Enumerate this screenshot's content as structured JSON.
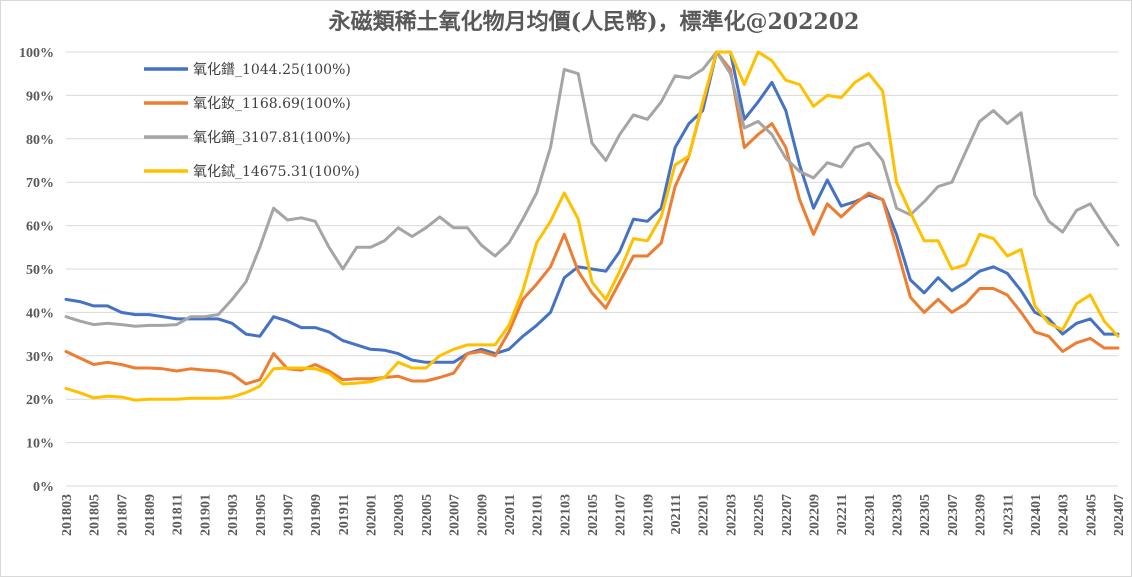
{
  "chart_data": {
    "type": "line",
    "title": "永磁類稀土氧化物月均價(人民幣)，標準化@202202",
    "xlabel": "",
    "ylabel": "",
    "ylim": [
      0,
      100
    ],
    "y_ticks": [
      "0%",
      "10%",
      "20%",
      "30%",
      "40%",
      "50%",
      "60%",
      "70%",
      "80%",
      "90%",
      "100%"
    ],
    "grid": "horizontal",
    "legend_position": "top-left",
    "x": [
      "201803",
      "201804",
      "201805",
      "201806",
      "201807",
      "201808",
      "201809",
      "201810",
      "201811",
      "201812",
      "201901",
      "201902",
      "201903",
      "201904",
      "201905",
      "201906",
      "201907",
      "201908",
      "201909",
      "201910",
      "201911",
      "201912",
      "202001",
      "202002",
      "202003",
      "202004",
      "202005",
      "202006",
      "202007",
      "202008",
      "202009",
      "202010",
      "202011",
      "202012",
      "202101",
      "202102",
      "202103",
      "202104",
      "202105",
      "202106",
      "202107",
      "202108",
      "202109",
      "202110",
      "202111",
      "202112",
      "202201",
      "202202",
      "202203",
      "202204",
      "202205",
      "202206",
      "202207",
      "202208",
      "202209",
      "202210",
      "202211",
      "202212",
      "202301",
      "202302",
      "202303",
      "202304",
      "202305",
      "202306",
      "202307",
      "202308",
      "202309",
      "202310",
      "202311",
      "202312",
      "202401",
      "202402",
      "202403",
      "202404",
      "202405",
      "202406",
      "202407"
    ],
    "x_tick_labels": [
      "201803",
      "201805",
      "201807",
      "201809",
      "201811",
      "201901",
      "201903",
      "201905",
      "201907",
      "201909",
      "201911",
      "202001",
      "202003",
      "202005",
      "202007",
      "202009",
      "202011",
      "202101",
      "202103",
      "202105",
      "202107",
      "202109",
      "202111",
      "202201",
      "202203",
      "202205",
      "202207",
      "202209",
      "202211",
      "202301",
      "202303",
      "202305",
      "202307",
      "202309",
      "202311",
      "202401",
      "202403",
      "202405",
      "202407"
    ],
    "series": [
      {
        "name": "氧化鐠_1044.25(100%)",
        "color": "#4472C4",
        "values": [
          43,
          42.5,
          41.5,
          41.5,
          40,
          39.5,
          39.5,
          39,
          38.5,
          38.5,
          38.5,
          38.5,
          37.5,
          35,
          34.5,
          39,
          38,
          36.5,
          36.5,
          35.5,
          33.5,
          32.5,
          31.5,
          31.3,
          30.5,
          29,
          28.5,
          28.5,
          28.5,
          30.5,
          31.5,
          30.5,
          31.5,
          34.5,
          37,
          40,
          48,
          50.5,
          50,
          49.5,
          54,
          61.5,
          61,
          64,
          78,
          83.5,
          86.5,
          100,
          100,
          84.5,
          88.5,
          93,
          86.5,
          74,
          64,
          70.5,
          64.5,
          65.5,
          67,
          66,
          58,
          47.5,
          44.5,
          48,
          45,
          47,
          49.5,
          50.5,
          49,
          45,
          40,
          38.5,
          35,
          37.5,
          38.5,
          35,
          35
        ]
      },
      {
        "name": "氧化釹_1168.69(100%)",
        "color": "#ED7D31",
        "values": [
          31,
          29.5,
          28,
          28.5,
          28,
          27.2,
          27.2,
          27,
          26.5,
          27,
          26.7,
          26.5,
          25.8,
          23.5,
          24.5,
          30.5,
          27,
          26.7,
          28,
          26.5,
          24.5,
          24.7,
          24.7,
          25,
          25.3,
          24.2,
          24.2,
          25,
          26,
          30.5,
          31,
          30,
          35.5,
          43,
          46.5,
          50.5,
          58,
          49.5,
          44.5,
          41,
          47,
          53,
          53,
          56,
          69,
          76,
          88,
          100,
          96,
          78,
          81,
          83.5,
          78,
          66,
          58,
          65,
          62,
          65,
          67.5,
          66,
          55,
          43.5,
          40,
          43,
          40,
          42,
          45.5,
          45.5,
          44,
          40,
          35.5,
          34.5,
          31,
          33,
          34,
          31.8,
          31.8
        ]
      },
      {
        "name": "氧化鏑_3107.81(100%)",
        "color": "#A5A5A5",
        "values": [
          39,
          38,
          37.2,
          37.5,
          37.2,
          36.8,
          37,
          37,
          37.2,
          39,
          39,
          39.5,
          43,
          47,
          55,
          64,
          61.3,
          61.8,
          61,
          55,
          50,
          55,
          55,
          56.5,
          59.5,
          57.5,
          59.5,
          62,
          59.5,
          59.5,
          55.5,
          53,
          56,
          61.5,
          67.5,
          78,
          96,
          95,
          79,
          75,
          81,
          85.5,
          84.5,
          88.5,
          94.5,
          94,
          96,
          100,
          95,
          82.5,
          84,
          81,
          75.5,
          72.5,
          71,
          74.5,
          73.5,
          78,
          79,
          75,
          64,
          62.5,
          65.5,
          69,
          70,
          77,
          84,
          86.5,
          83.5,
          86,
          67,
          61,
          58.5,
          63.5,
          65,
          60,
          55.5
        ]
      },
      {
        "name": "氧化鋱_14675.31(100%)",
        "color": "#FFC000",
        "values": [
          22.5,
          21.5,
          20.3,
          20.7,
          20.5,
          19.8,
          20,
          20,
          20,
          20.2,
          20.2,
          20.2,
          20.5,
          21.5,
          23,
          27,
          27.2,
          27.2,
          27,
          26,
          23.5,
          23.7,
          24,
          25,
          28.5,
          27.2,
          27.2,
          30,
          31.5,
          32.5,
          32.5,
          32.5,
          37,
          45,
          56,
          61,
          67.5,
          61.5,
          47,
          43,
          49.5,
          57,
          56.5,
          62,
          74,
          76,
          88.5,
          100,
          100,
          92.5,
          100,
          98,
          93.5,
          92.5,
          87.5,
          90,
          89.5,
          93,
          95,
          91,
          70,
          63,
          56.5,
          56.5,
          50,
          51,
          58,
          57,
          53,
          54.5,
          41.5,
          37.5,
          36,
          42,
          44,
          38,
          34.5
        ]
      }
    ]
  }
}
